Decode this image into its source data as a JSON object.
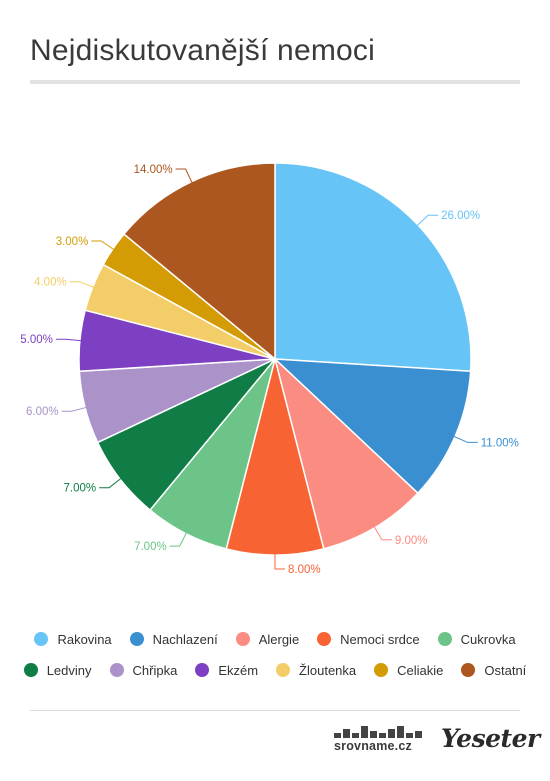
{
  "title": "Nejdiskutovanější nemoci",
  "chart_data": {
    "type": "pie",
    "title": "Nejdiskutovanější nemoci",
    "slices": [
      {
        "name": "Rakovina",
        "value": 26,
        "label": "26.00%",
        "color": "#66c4f7"
      },
      {
        "name": "Nachlazení",
        "value": 11,
        "label": "11.00%",
        "color": "#3a8fd1"
      },
      {
        "name": "Alergie",
        "value": 9,
        "label": "9.00%",
        "color": "#fb8c82"
      },
      {
        "name": "Nemoci srdce",
        "value": 8,
        "label": "8.00%",
        "color": "#f86334"
      },
      {
        "name": "Cukrovka",
        "value": 7,
        "label": "7.00%",
        "color": "#6cc489"
      },
      {
        "name": "Ledviny",
        "value": 7,
        "label": "7.00%",
        "color": "#0f7d45"
      },
      {
        "name": "Chřipka",
        "value": 6,
        "label": "6.00%",
        "color": "#ab92c9"
      },
      {
        "name": "Ekzém",
        "value": 5,
        "label": "5.00%",
        "color": "#7d40c2"
      },
      {
        "name": "Žloutenka",
        "value": 4,
        "label": "4.00%",
        "color": "#f2cd68"
      },
      {
        "name": "Celiakie",
        "value": 3,
        "label": "3.00%",
        "color": "#d39c04"
      },
      {
        "name": "Ostatní",
        "value": 14,
        "label": "14.00%",
        "color": "#ac5620"
      }
    ],
    "legend_position": "bottom"
  },
  "legend_rows": [
    [
      "Rakovina",
      "Nachlazení",
      "Alergie",
      "Nemoci srdce",
      "Cukrovka"
    ],
    [
      "Ledviny",
      "Chřipka",
      "Ekzém",
      "Žloutenka",
      "Celiakie",
      "Ostatní"
    ]
  ],
  "footer": {
    "brand1": "srovname.cz",
    "brand2": "Yeseter"
  }
}
